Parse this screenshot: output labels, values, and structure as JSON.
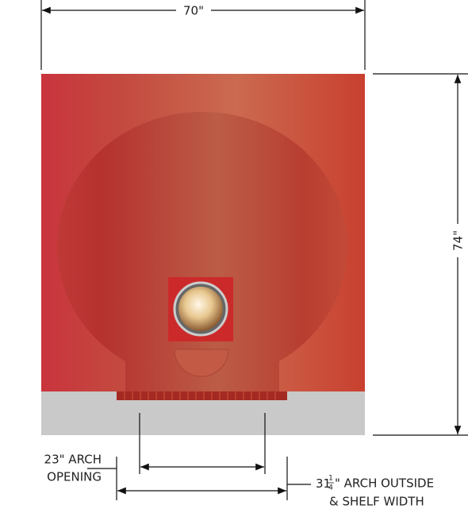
{
  "dimensions": {
    "width": "70\"",
    "height": "74\"",
    "arch_opening": {
      "line1": "23\" ARCH",
      "line2": "OPENING"
    },
    "arch_outside": {
      "whole": "31",
      "numerator": "1",
      "denominator": "4",
      "line1_rest": "\" ARCH OUTSIDE",
      "line2": "& SHELF WIDTH"
    }
  }
}
